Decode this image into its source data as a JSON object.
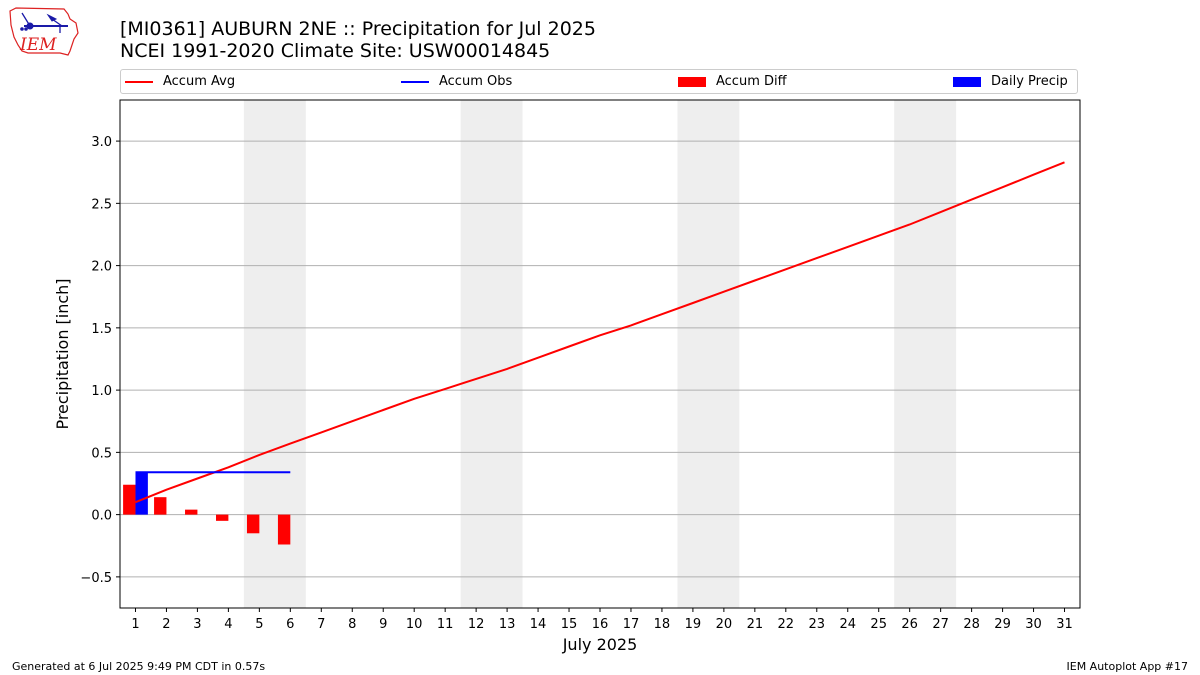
{
  "header": {
    "title_line1": "[MI0361] AUBURN 2NE :: Precipitation for Jul 2025",
    "title_line2": "NCEI 1991-2020 Climate Site: USW00014845"
  },
  "logo": {
    "text": "IEM",
    "icon": "iem-iowa-logo"
  },
  "legend": {
    "items": [
      {
        "label": "Accum Avg",
        "kind": "line",
        "color": "#ff0000"
      },
      {
        "label": "Accum Obs",
        "kind": "line",
        "color": "#0000ff"
      },
      {
        "label": "Accum Diff",
        "kind": "patch",
        "color": "#ff0000"
      },
      {
        "label": "Daily Precip",
        "kind": "patch",
        "color": "#0000ff"
      }
    ]
  },
  "chart_data": {
    "type": "bar",
    "title": "[MI0361] AUBURN 2NE :: Precipitation for Jul 2025",
    "subtitle": "NCEI 1991-2020 Climate Site: USW00014845",
    "xlabel": "July 2025",
    "ylabel": "Precipitation [inch]",
    "xlim": [
      0.5,
      31.5
    ],
    "ylim": [
      -0.75,
      3.33
    ],
    "yticks": [
      -0.5,
      0.0,
      0.5,
      1.0,
      1.5,
      2.0,
      2.5,
      3.0
    ],
    "ytick_labels": [
      "−0.5",
      "0.0",
      "0.5",
      "1.0",
      "1.5",
      "2.0",
      "2.5",
      "3.0"
    ],
    "xticks": [
      1,
      2,
      3,
      4,
      5,
      6,
      7,
      8,
      9,
      10,
      11,
      12,
      13,
      14,
      15,
      16,
      17,
      18,
      19,
      20,
      21,
      22,
      23,
      24,
      25,
      26,
      27,
      28,
      29,
      30,
      31
    ],
    "grid": "horizontal",
    "legend_position": "top",
    "weekend_shading": [
      [
        4.5,
        6.5
      ],
      [
        11.5,
        13.5
      ],
      [
        18.5,
        20.5
      ],
      [
        25.5,
        27.5
      ]
    ],
    "weekend_color": "#eeeeee",
    "series": [
      {
        "name": "Accum Avg",
        "kind": "line",
        "color": "#ff0000",
        "x": [
          1,
          2,
          3,
          4,
          5,
          6,
          7,
          8,
          9,
          10,
          11,
          12,
          13,
          14,
          15,
          16,
          17,
          18,
          19,
          20,
          21,
          22,
          23,
          24,
          25,
          26,
          27,
          28,
          29,
          30,
          31
        ],
        "values": [
          0.1,
          0.2,
          0.29,
          0.38,
          0.48,
          0.57,
          0.66,
          0.75,
          0.84,
          0.93,
          1.01,
          1.09,
          1.17,
          1.26,
          1.35,
          1.44,
          1.52,
          1.61,
          1.7,
          1.79,
          1.88,
          1.97,
          2.06,
          2.15,
          2.24,
          2.33,
          2.43,
          2.53,
          2.63,
          2.73,
          2.83
        ]
      },
      {
        "name": "Accum Obs",
        "kind": "line",
        "color": "#0000ff",
        "x": [
          1,
          2,
          3,
          4,
          5,
          6
        ],
        "values": [
          0.34,
          0.34,
          0.34,
          0.34,
          0.34,
          0.34
        ]
      },
      {
        "name": "Accum Diff",
        "kind": "bar",
        "color": "#ff0000",
        "x": [
          1,
          2,
          3,
          4,
          5,
          6
        ],
        "values": [
          0.24,
          0.14,
          0.04,
          -0.05,
          -0.15,
          -0.24
        ]
      },
      {
        "name": "Daily Precip",
        "kind": "bar",
        "color": "#0000ff",
        "x": [
          1
        ],
        "values": [
          0.34
        ]
      }
    ]
  },
  "footer": {
    "left": "Generated at 6 Jul 2025 9:49 PM CDT in 0.57s",
    "right": "IEM Autoplot App #17"
  }
}
